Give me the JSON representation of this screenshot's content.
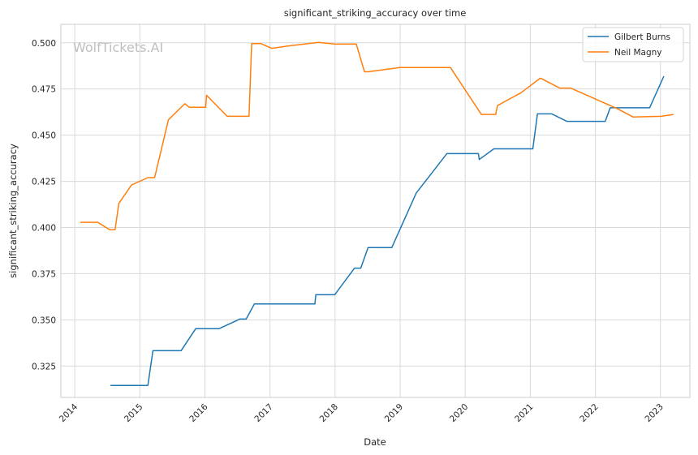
{
  "watermark": "WolfTickets.AI",
  "chart_data": {
    "type": "line",
    "title": "significant_striking_accuracy over time",
    "xlabel": "Date",
    "ylabel": "significant_striking_accuracy",
    "x_ticks": [
      "2014",
      "2015",
      "2016",
      "2017",
      "2018",
      "2019",
      "2020",
      "2021",
      "2022",
      "2023"
    ],
    "y_ticks": [
      "0.325",
      "0.350",
      "0.375",
      "0.400",
      "0.425",
      "0.450",
      "0.475",
      "0.500"
    ],
    "xlim": [
      "2013-10-15",
      "2023-06-15"
    ],
    "ylim": [
      0.308,
      0.51
    ],
    "grid": true,
    "legend_position": "top-right",
    "series": [
      {
        "name": "Gilbert Burns",
        "color": "#1f77b4",
        "points": [
          [
            "2014-07-20",
            0.3145
          ],
          [
            "2015-02-15",
            0.3145
          ],
          [
            "2015-03-15",
            0.3333
          ],
          [
            "2015-08-20",
            0.3333
          ],
          [
            "2015-11-10",
            0.3452
          ],
          [
            "2016-03-20",
            0.3452
          ],
          [
            "2016-07-15",
            0.3504
          ],
          [
            "2016-08-20",
            0.3504
          ],
          [
            "2016-10-05",
            0.3586
          ],
          [
            "2017-09-10",
            0.3586
          ],
          [
            "2017-09-15",
            0.3636
          ],
          [
            "2017-10-05",
            0.3636
          ],
          [
            "2017-12-30",
            0.3636
          ],
          [
            "2018-04-20",
            0.378
          ],
          [
            "2018-05-25",
            0.378
          ],
          [
            "2018-07-05",
            0.3891
          ],
          [
            "2018-11-15",
            0.3891
          ],
          [
            "2019-04-01",
            0.4186
          ],
          [
            "2019-09-20",
            0.44
          ],
          [
            "2020-03-15",
            0.44
          ],
          [
            "2020-03-20",
            0.4368
          ],
          [
            "2020-06-10",
            0.4426
          ],
          [
            "2021-01-15",
            0.4426
          ],
          [
            "2021-02-10",
            0.4615
          ],
          [
            "2021-05-01",
            0.4615
          ],
          [
            "2021-07-25",
            0.4575
          ],
          [
            "2022-02-25",
            0.4575
          ],
          [
            "2022-03-25",
            0.4648
          ],
          [
            "2022-11-01",
            0.4648
          ],
          [
            "2023-01-20",
            0.4819
          ]
        ]
      },
      {
        "name": "Neil Magny",
        "color": "#ff7f0e",
        "points": [
          [
            "2014-02-01",
            0.4028
          ],
          [
            "2014-05-10",
            0.4028
          ],
          [
            "2014-07-15",
            0.3988
          ],
          [
            "2014-08-15",
            0.3988
          ],
          [
            "2014-09-05",
            0.413
          ],
          [
            "2014-11-15",
            0.423
          ],
          [
            "2015-02-15",
            0.427
          ],
          [
            "2015-03-25",
            0.427
          ],
          [
            "2015-06-10",
            0.4583
          ],
          [
            "2015-09-10",
            0.467
          ],
          [
            "2015-10-05",
            0.4651
          ],
          [
            "2016-01-05",
            0.4651
          ],
          [
            "2016-01-10",
            0.4716
          ],
          [
            "2016-05-05",
            0.4602
          ],
          [
            "2016-09-05",
            0.4602
          ],
          [
            "2016-09-20",
            0.4996
          ],
          [
            "2016-11-10",
            0.4996
          ],
          [
            "2017-01-10",
            0.497
          ],
          [
            "2017-04-15",
            0.4983
          ],
          [
            "2017-10-01",
            0.5002
          ],
          [
            "2018-01-01",
            0.4993
          ],
          [
            "2018-04-30",
            0.4993
          ],
          [
            "2018-06-15",
            0.4843
          ],
          [
            "2018-07-05",
            0.4843
          ],
          [
            "2018-12-30",
            0.4866
          ],
          [
            "2019-10-10",
            0.4866
          ],
          [
            "2020-04-01",
            0.4612
          ],
          [
            "2020-06-20",
            0.4612
          ],
          [
            "2020-06-30",
            0.466
          ],
          [
            "2020-11-10",
            0.473
          ],
          [
            "2021-02-25",
            0.4808
          ],
          [
            "2021-03-10",
            0.4803
          ],
          [
            "2021-06-15",
            0.4755
          ],
          [
            "2021-08-15",
            0.4755
          ],
          [
            "2022-05-05",
            0.4643
          ],
          [
            "2022-08-01",
            0.4598
          ],
          [
            "2023-01-05",
            0.4602
          ],
          [
            "2023-03-15",
            0.4612
          ]
        ]
      }
    ]
  }
}
